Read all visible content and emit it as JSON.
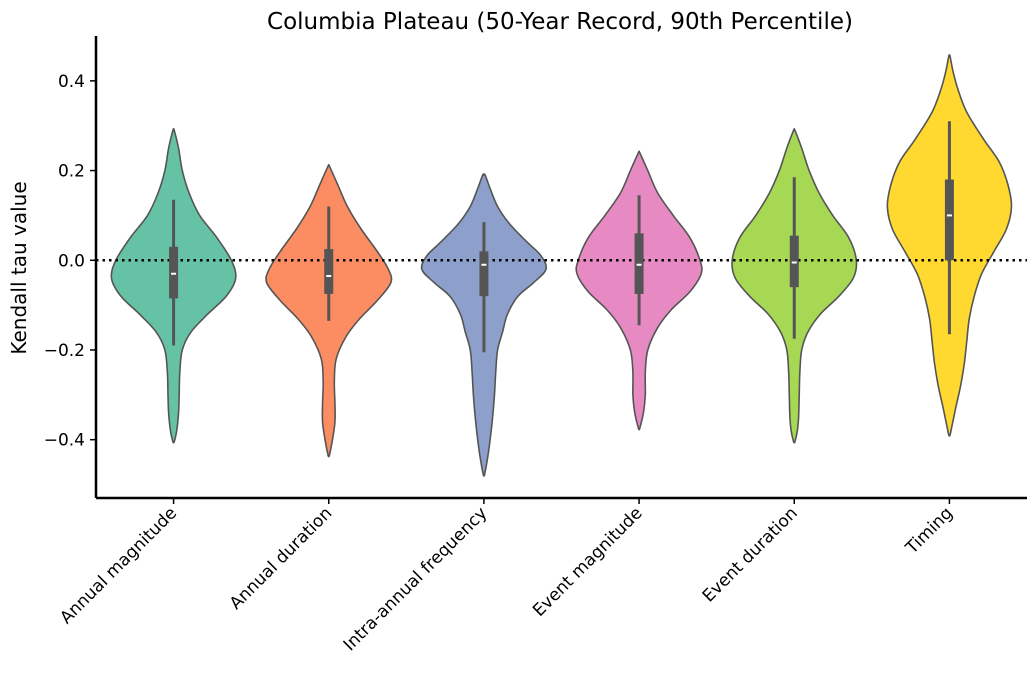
{
  "chart_data": {
    "type": "violin",
    "title": "Columbia Plateau (50-Year Record, 90th Percentile)",
    "xlabel": "",
    "ylabel": "Kendall tau value",
    "ylim": [
      -0.53,
      0.5
    ],
    "yticks": [
      -0.4,
      -0.2,
      0.0,
      0.2,
      0.4
    ],
    "ytick_labels": [
      "−0.4",
      "−0.2",
      "0.0",
      "0.2",
      "0.4"
    ],
    "reference_line": {
      "y": 0.0,
      "style": "dotted",
      "color": "#000000"
    },
    "grid": false,
    "legend": "none",
    "categories": [
      "Annual magnitude",
      "Annual duration",
      "Intra-annual frequency",
      "Event magnitude",
      "Event duration",
      "Timing"
    ],
    "colors": [
      "#66c2a5",
      "#fc8d62",
      "#8da0cb",
      "#e78ac3",
      "#a6d854",
      "#ffd92f"
    ],
    "violins": [
      {
        "category": "Annual magnitude",
        "median": -0.03,
        "q1": -0.085,
        "q3": 0.03,
        "whisker_low": -0.19,
        "whisker_high": 0.135,
        "min": -0.405,
        "max": 0.29,
        "profile": [
          [
            0.29,
            0.01
          ],
          [
            0.25,
            0.08
          ],
          [
            0.2,
            0.14
          ],
          [
            0.15,
            0.25
          ],
          [
            0.1,
            0.42
          ],
          [
            0.05,
            0.7
          ],
          [
            0.0,
            0.93
          ],
          [
            -0.04,
            1.0
          ],
          [
            -0.08,
            0.85
          ],
          [
            -0.12,
            0.55
          ],
          [
            -0.16,
            0.28
          ],
          [
            -0.2,
            0.14
          ],
          [
            -0.25,
            0.1
          ],
          [
            -0.3,
            0.09
          ],
          [
            -0.34,
            0.08
          ],
          [
            -0.38,
            0.05
          ],
          [
            -0.405,
            0.01
          ]
        ]
      },
      {
        "category": "Annual duration",
        "median": -0.035,
        "q1": -0.075,
        "q3": 0.025,
        "whisker_low": -0.135,
        "whisker_high": 0.12,
        "min": -0.435,
        "max": 0.21,
        "profile": [
          [
            0.21,
            0.01
          ],
          [
            0.17,
            0.14
          ],
          [
            0.12,
            0.3
          ],
          [
            0.07,
            0.52
          ],
          [
            0.02,
            0.78
          ],
          [
            -0.02,
            0.96
          ],
          [
            -0.05,
            1.0
          ],
          [
            -0.09,
            0.78
          ],
          [
            -0.13,
            0.5
          ],
          [
            -0.17,
            0.28
          ],
          [
            -0.22,
            0.12
          ],
          [
            -0.27,
            0.09
          ],
          [
            -0.32,
            0.1
          ],
          [
            -0.36,
            0.1
          ],
          [
            -0.4,
            0.06
          ],
          [
            -0.435,
            0.01
          ]
        ]
      },
      {
        "category": "Intra-annual frequency",
        "median": -0.01,
        "q1": -0.08,
        "q3": 0.02,
        "whisker_low": -0.205,
        "whisker_high": 0.085,
        "min": -0.478,
        "max": 0.19,
        "profile": [
          [
            0.19,
            0.02
          ],
          [
            0.16,
            0.1
          ],
          [
            0.12,
            0.22
          ],
          [
            0.08,
            0.42
          ],
          [
            0.04,
            0.7
          ],
          [
            0.01,
            0.92
          ],
          [
            -0.02,
            1.0
          ],
          [
            -0.05,
            0.8
          ],
          [
            -0.08,
            0.55
          ],
          [
            -0.12,
            0.38
          ],
          [
            -0.16,
            0.3
          ],
          [
            -0.2,
            0.22
          ],
          [
            -0.25,
            0.19
          ],
          [
            -0.3,
            0.17
          ],
          [
            -0.35,
            0.14
          ],
          [
            -0.4,
            0.1
          ],
          [
            -0.44,
            0.06
          ],
          [
            -0.478,
            0.01
          ]
        ]
      },
      {
        "category": "Event magnitude",
        "median": -0.01,
        "q1": -0.075,
        "q3": 0.06,
        "whisker_low": -0.145,
        "whisker_high": 0.145,
        "min": -0.375,
        "max": 0.24,
        "profile": [
          [
            0.24,
            0.01
          ],
          [
            0.2,
            0.14
          ],
          [
            0.15,
            0.3
          ],
          [
            0.1,
            0.55
          ],
          [
            0.05,
            0.82
          ],
          [
            0.0,
            0.98
          ],
          [
            -0.03,
            1.0
          ],
          [
            -0.07,
            0.82
          ],
          [
            -0.11,
            0.52
          ],
          [
            -0.15,
            0.3
          ],
          [
            -0.2,
            0.14
          ],
          [
            -0.25,
            0.1
          ],
          [
            -0.3,
            0.1
          ],
          [
            -0.34,
            0.07
          ],
          [
            -0.375,
            0.01
          ]
        ]
      },
      {
        "category": "Event duration",
        "median": -0.005,
        "q1": -0.06,
        "q3": 0.055,
        "whisker_low": -0.175,
        "whisker_high": 0.185,
        "min": -0.405,
        "max": 0.29,
        "profile": [
          [
            0.29,
            0.01
          ],
          [
            0.25,
            0.12
          ],
          [
            0.2,
            0.24
          ],
          [
            0.15,
            0.4
          ],
          [
            0.1,
            0.62
          ],
          [
            0.05,
            0.88
          ],
          [
            0.0,
            1.0
          ],
          [
            -0.04,
            0.95
          ],
          [
            -0.08,
            0.72
          ],
          [
            -0.12,
            0.42
          ],
          [
            -0.16,
            0.22
          ],
          [
            -0.2,
            0.12
          ],
          [
            -0.25,
            0.09
          ],
          [
            -0.3,
            0.08
          ],
          [
            -0.35,
            0.07
          ],
          [
            -0.38,
            0.05
          ],
          [
            -0.405,
            0.01
          ]
        ]
      },
      {
        "category": "Timing",
        "median": 0.1,
        "q1": 0.0,
        "q3": 0.18,
        "whisker_low": -0.165,
        "whisker_high": 0.31,
        "min": -0.39,
        "max": 0.455,
        "profile": [
          [
            0.455,
            0.01
          ],
          [
            0.42,
            0.06
          ],
          [
            0.38,
            0.14
          ],
          [
            0.33,
            0.28
          ],
          [
            0.27,
            0.55
          ],
          [
            0.22,
            0.8
          ],
          [
            0.17,
            0.94
          ],
          [
            0.12,
            1.0
          ],
          [
            0.07,
            0.92
          ],
          [
            0.02,
            0.72
          ],
          [
            -0.03,
            0.52
          ],
          [
            -0.08,
            0.4
          ],
          [
            -0.13,
            0.32
          ],
          [
            -0.18,
            0.28
          ],
          [
            -0.23,
            0.24
          ],
          [
            -0.28,
            0.18
          ],
          [
            -0.33,
            0.1
          ],
          [
            -0.37,
            0.04
          ],
          [
            -0.39,
            0.01
          ]
        ]
      }
    ]
  }
}
